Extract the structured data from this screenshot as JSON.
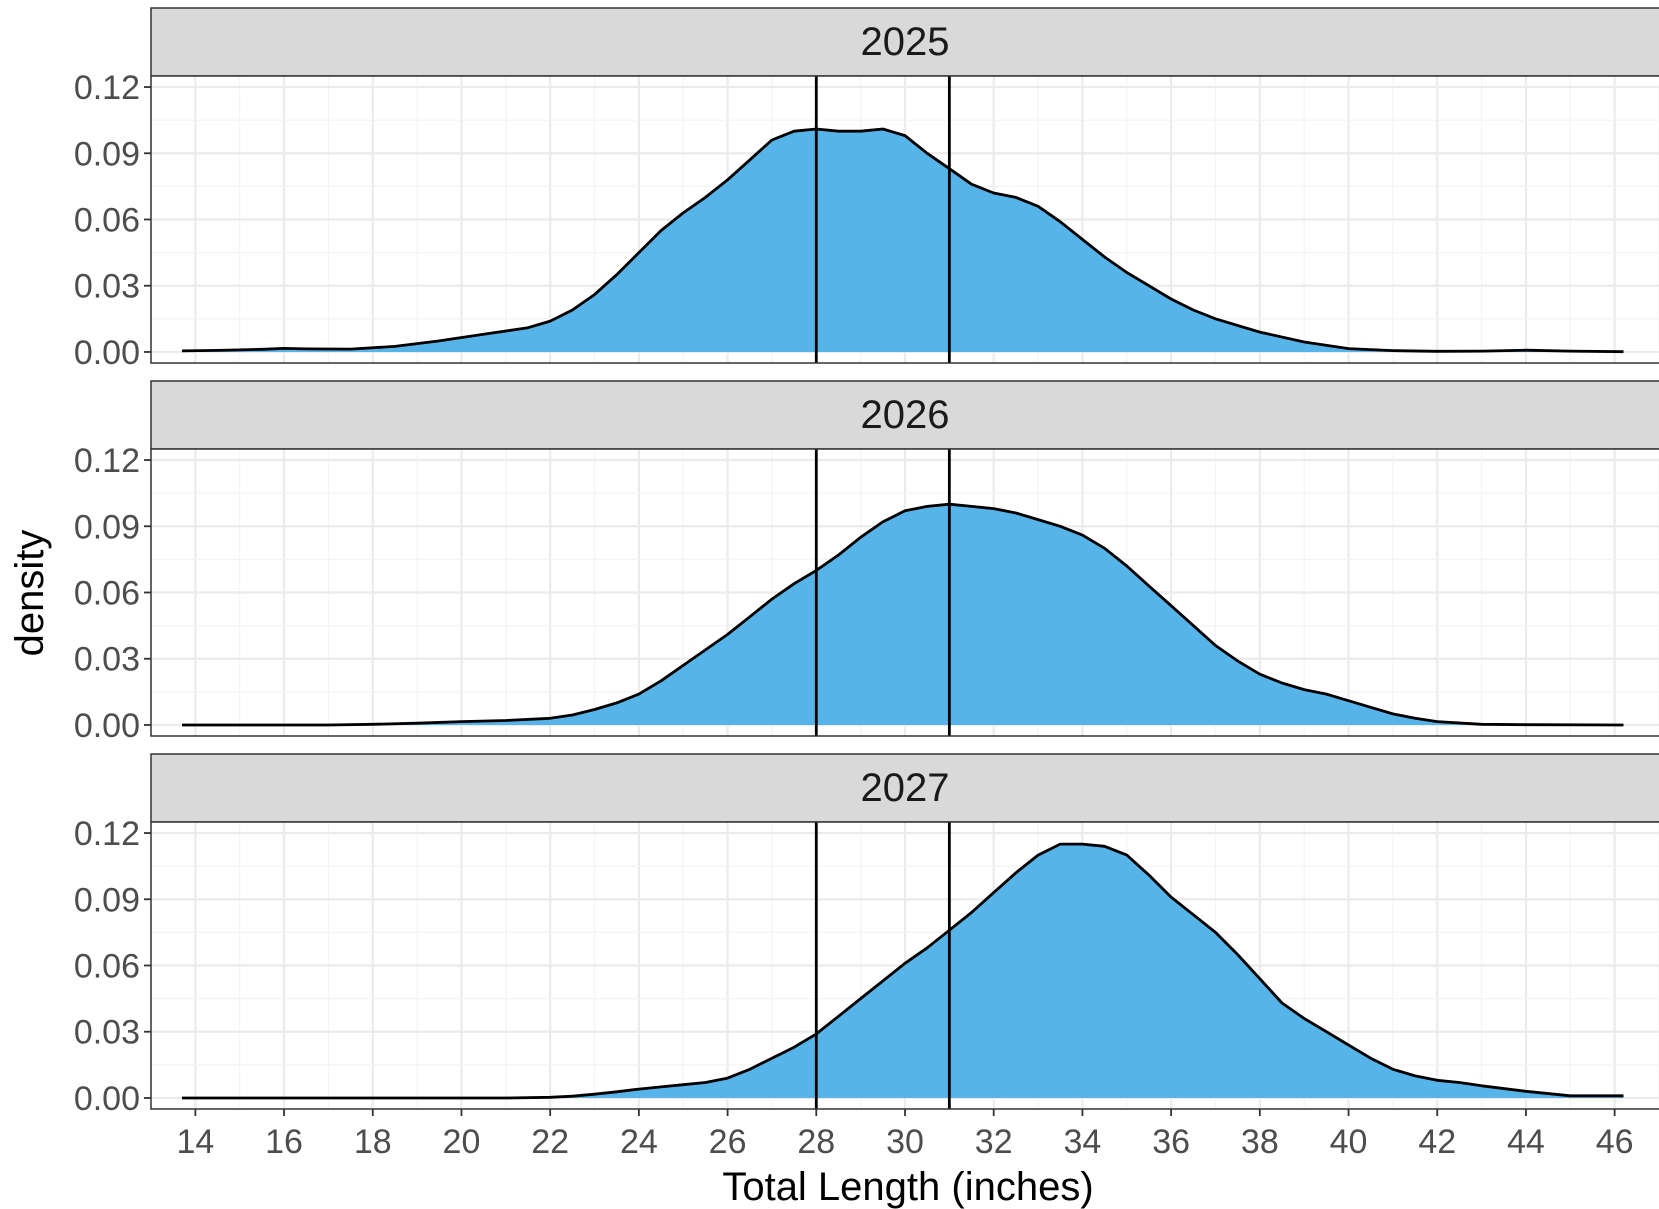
{
  "chart_data": {
    "type": "area",
    "xlabel": "Total Length (inches)",
    "ylabel": "density",
    "xlim": [
      13,
      47
    ],
    "ylim": [
      -0.005,
      0.125
    ],
    "x_ticks": [
      "14",
      "16",
      "18",
      "20",
      "22",
      "24",
      "26",
      "28",
      "30",
      "32",
      "34",
      "36",
      "38",
      "40",
      "42",
      "44",
      "46"
    ],
    "x_tick_values": [
      14,
      16,
      18,
      20,
      22,
      24,
      26,
      28,
      30,
      32,
      34,
      36,
      38,
      40,
      42,
      44,
      46
    ],
    "y_ticks": [
      "0.00",
      "0.03",
      "0.06",
      "0.09",
      "0.12"
    ],
    "y_tick_values": [
      0,
      0.03,
      0.06,
      0.09,
      0.12
    ],
    "reference_lines_x": [
      28,
      31
    ],
    "grid": true,
    "fill_color": "#56B4E9",
    "line_color": "#000000",
    "strip_color": "#D9D9D9",
    "panels": [
      {
        "label": "2025",
        "x": [
          13.7,
          14.5,
          15.5,
          16,
          16.5,
          17.5,
          18.5,
          19.5,
          20.5,
          21.5,
          22,
          22.5,
          23,
          23.5,
          24,
          24.5,
          25,
          25.5,
          26,
          26.5,
          27,
          27.5,
          28,
          28.5,
          29,
          29.5,
          30,
          30.5,
          31,
          31.5,
          32,
          32.5,
          33,
          33.5,
          34,
          34.5,
          35,
          35.5,
          36,
          36.5,
          37,
          38,
          39,
          40,
          41,
          42,
          43,
          44,
          45,
          46.2
        ],
        "y": [
          0.0005,
          0.0007,
          0.0012,
          0.0016,
          0.0014,
          0.0013,
          0.0025,
          0.005,
          0.008,
          0.011,
          0.014,
          0.019,
          0.026,
          0.035,
          0.045,
          0.055,
          0.063,
          0.07,
          0.078,
          0.087,
          0.096,
          0.1,
          0.101,
          0.1,
          0.1,
          0.101,
          0.098,
          0.09,
          0.083,
          0.076,
          0.072,
          0.07,
          0.066,
          0.059,
          0.051,
          0.043,
          0.036,
          0.03,
          0.024,
          0.019,
          0.015,
          0.009,
          0.0045,
          0.0015,
          0.0006,
          0.0003,
          0.0004,
          0.0008,
          0.0004,
          0.0001
        ]
      },
      {
        "label": "2026",
        "x": [
          13.7,
          15,
          16,
          17,
          18,
          19,
          20,
          21,
          22,
          22.5,
          23,
          23.5,
          24,
          24.5,
          25,
          25.5,
          26,
          26.5,
          27,
          27.5,
          28,
          28.5,
          29,
          29.5,
          30,
          30.5,
          31,
          31.5,
          32,
          32.5,
          33,
          33.5,
          34,
          34.5,
          35,
          35.5,
          36,
          36.5,
          37,
          37.5,
          38,
          38.5,
          39,
          39.5,
          40,
          40.5,
          41,
          41.5,
          42,
          43,
          44,
          46.2
        ],
        "y": [
          0,
          0,
          0,
          0,
          0.0003,
          0.0008,
          0.0015,
          0.002,
          0.003,
          0.0045,
          0.007,
          0.01,
          0.014,
          0.02,
          0.027,
          0.034,
          0.041,
          0.049,
          0.057,
          0.064,
          0.07,
          0.077,
          0.085,
          0.092,
          0.097,
          0.099,
          0.1,
          0.099,
          0.098,
          0.096,
          0.093,
          0.09,
          0.086,
          0.08,
          0.072,
          0.063,
          0.054,
          0.045,
          0.036,
          0.029,
          0.023,
          0.019,
          0.016,
          0.014,
          0.011,
          0.008,
          0.005,
          0.003,
          0.0015,
          0.0003,
          0.0001,
          0
        ]
      },
      {
        "label": "2027",
        "x": [
          13.7,
          16,
          18,
          20,
          21,
          22,
          22.5,
          23,
          23.5,
          24,
          24.5,
          25,
          25.5,
          26,
          26.5,
          27,
          27.5,
          28,
          28.5,
          29,
          29.5,
          30,
          30.5,
          31,
          31.5,
          32,
          32.5,
          33,
          33.5,
          34,
          34.5,
          35,
          35.5,
          36,
          36.5,
          37,
          37.5,
          38,
          38.5,
          39,
          39.5,
          40,
          40.5,
          41,
          41.5,
          42,
          42.5,
          43,
          44,
          45,
          46.2
        ],
        "y": [
          0,
          0,
          0,
          0,
          0,
          0.0003,
          0.0008,
          0.0017,
          0.0028,
          0.004,
          0.005,
          0.006,
          0.007,
          0.009,
          0.013,
          0.018,
          0.023,
          0.029,
          0.037,
          0.045,
          0.053,
          0.061,
          0.068,
          0.076,
          0.084,
          0.093,
          0.102,
          0.11,
          0.115,
          0.115,
          0.114,
          0.11,
          0.101,
          0.091,
          0.083,
          0.075,
          0.065,
          0.054,
          0.043,
          0.036,
          0.03,
          0.024,
          0.018,
          0.013,
          0.01,
          0.008,
          0.007,
          0.0055,
          0.003,
          0.001,
          0.001
        ]
      }
    ]
  }
}
